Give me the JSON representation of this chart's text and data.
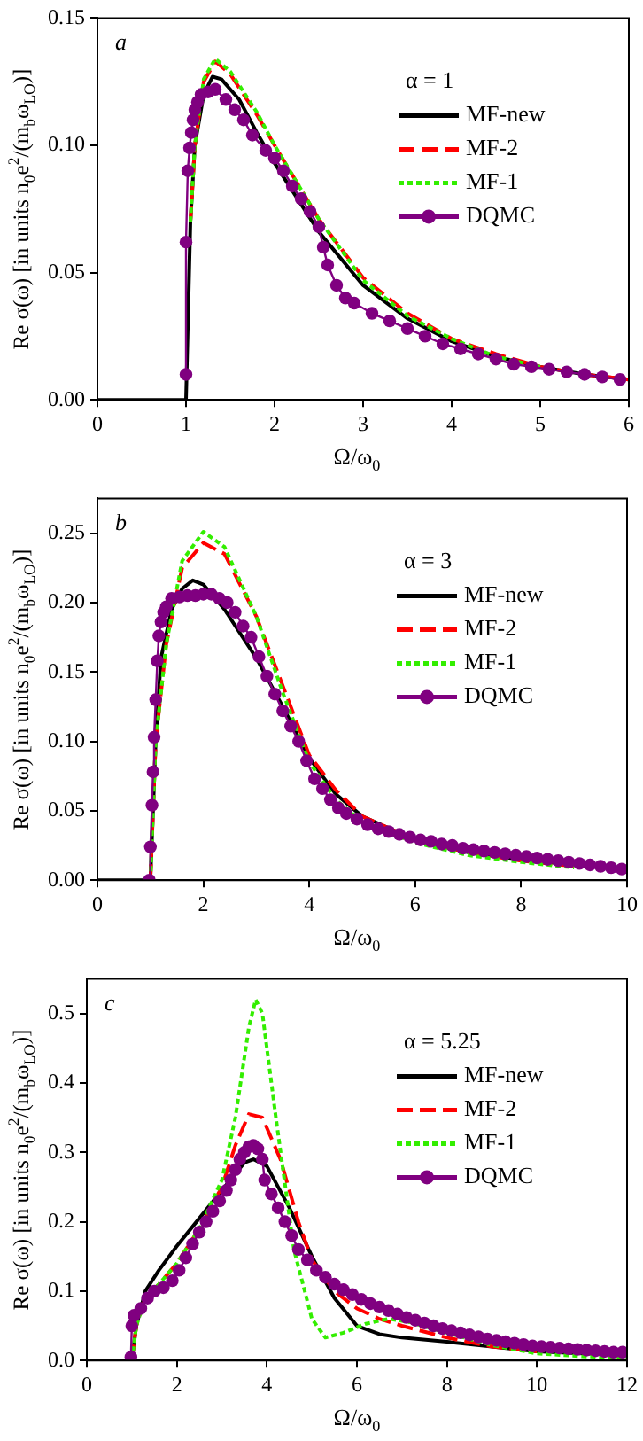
{
  "chart_data": [
    {
      "type": "line",
      "xlabel": "Ω/ω$_{0}$",
      "ylabel": "Re σ(ω) [in units n$_{0}$e$^{2}$/(m$_{b}$ω$_{LO}$)]",
      "legend_title": "α = 1",
      "legend": "top right",
      "annotations": [
        "a"
      ],
      "xlim": [
        0,
        6
      ],
      "xticks": [
        0,
        1,
        2,
        3,
        4,
        5,
        6
      ],
      "ylim": [
        0,
        0.15
      ],
      "yticks": [
        {
          "value": 0,
          "label": "0.00"
        },
        0.05,
        {
          "value": 0.1,
          "label": "0.10"
        },
        0.15
      ],
      "series": [
        {
          "name": "MF-new",
          "color": "#000000",
          "line_style": "solid",
          "marker": "none",
          "x": [
            0,
            1,
            1.05,
            1.1,
            1.2,
            1.3,
            1.4,
            1.6,
            1.8,
            2,
            2.5,
            3,
            3.5,
            4,
            4.5,
            5,
            5.5,
            6
          ],
          "values": [
            0,
            0,
            0.07,
            0.1,
            0.12,
            0.127,
            0.126,
            0.118,
            0.105,
            0.093,
            0.066,
            0.045,
            0.032,
            0.023,
            0.017,
            0.013,
            0.01,
            0.008
          ]
        },
        {
          "name": "MF-2",
          "color": "#ff0000",
          "line_style": "dashed",
          "marker": "none",
          "x": [
            1.05,
            1.1,
            1.2,
            1.33,
            1.5,
            1.8,
            2,
            2.5,
            3,
            3.5,
            4,
            4.5,
            5,
            5.5,
            6
          ],
          "values": [
            0.07,
            0.1,
            0.125,
            0.133,
            0.128,
            0.112,
            0.1,
            0.071,
            0.048,
            0.034,
            0.024,
            0.018,
            0.013,
            0.01,
            0.008
          ]
        },
        {
          "name": "MF-1",
          "color": "#33ee00",
          "line_style": "dotted",
          "marker": "none",
          "x": [
            1.05,
            1.1,
            1.2,
            1.33,
            1.5,
            1.8,
            2,
            2.5,
            3,
            3.5,
            4,
            4.5,
            5
          ],
          "values": [
            0.07,
            0.1,
            0.126,
            0.134,
            0.129,
            0.113,
            0.1,
            0.071,
            0.047,
            0.033,
            0.024,
            0.017,
            0.013
          ]
        },
        {
          "name": "DQMC",
          "color": "#800080",
          "line_style": "solid",
          "marker": "circle",
          "x": [
            1,
            1,
            1.02,
            1.04,
            1.06,
            1.08,
            1.1,
            1.13,
            1.17,
            1.25,
            1.33,
            1.45,
            1.55,
            1.65,
            1.75,
            1.9,
            2,
            2.1,
            2.2,
            2.3,
            2.4,
            2.5,
            2.55,
            2.6,
            2.7,
            2.8,
            2.9,
            3.1,
            3.3,
            3.5,
            3.7,
            3.9,
            4.1,
            4.3,
            4.5,
            4.7,
            4.9,
            5.1,
            5.3,
            5.5,
            5.7,
            5.9
          ],
          "values": [
            0.01,
            0.062,
            0.09,
            0.099,
            0.105,
            0.11,
            0.114,
            0.117,
            0.12,
            0.121,
            0.122,
            0.118,
            0.114,
            0.11,
            0.104,
            0.098,
            0.095,
            0.09,
            0.084,
            0.079,
            0.074,
            0.068,
            0.06,
            0.053,
            0.045,
            0.04,
            0.038,
            0.034,
            0.031,
            0.028,
            0.025,
            0.022,
            0.02,
            0.018,
            0.016,
            0.014,
            0.013,
            0.012,
            0.011,
            0.01,
            0.009,
            0.008
          ]
        }
      ]
    },
    {
      "type": "line",
      "xlabel": "Ω/ω$_{0}$",
      "ylabel": "Re σ(ω) [in units n$_{0}$e$^{2}$/(m$_{b}$ω$_{LO}$)]",
      "legend_title": "α = 3",
      "legend": "top right",
      "annotations": [
        "b"
      ],
      "xlim": [
        0,
        10
      ],
      "xticks": [
        0,
        2,
        4,
        6,
        8,
        10
      ],
      "ylim": [
        0,
        0.275
      ],
      "yticks": [
        {
          "value": 0,
          "label": "0.00"
        },
        0.05,
        {
          "value": 0.1,
          "label": "0.10"
        },
        0.15,
        {
          "value": 0.2,
          "label": "0.20"
        },
        0.25
      ],
      "series": [
        {
          "name": "MF-new",
          "color": "#000000",
          "line_style": "solid",
          "marker": "none",
          "x": [
            0,
            1,
            1.1,
            1.2,
            1.4,
            1.6,
            1.8,
            2,
            2.4,
            3,
            3.5,
            4,
            4.5,
            5,
            6,
            7,
            8,
            9,
            10
          ],
          "values": [
            0,
            0,
            0.1,
            0.16,
            0.195,
            0.21,
            0.216,
            0.213,
            0.195,
            0.16,
            0.125,
            0.088,
            0.062,
            0.046,
            0.029,
            0.02,
            0.015,
            0.011,
            0.008
          ]
        },
        {
          "name": "MF-2",
          "color": "#ff0000",
          "line_style": "dashed",
          "marker": "none",
          "x": [
            1,
            1.1,
            1.3,
            1.6,
            2,
            2.4,
            3,
            3.5,
            4,
            4.5,
            5,
            6,
            7,
            8,
            9
          ],
          "values": [
            0,
            0.1,
            0.17,
            0.225,
            0.243,
            0.235,
            0.19,
            0.14,
            0.09,
            0.065,
            0.046,
            0.029,
            0.02,
            0.014,
            0.01
          ]
        },
        {
          "name": "MF-1",
          "color": "#33ee00",
          "line_style": "dotted",
          "marker": "none",
          "x": [
            1,
            1.1,
            1.3,
            1.6,
            2,
            2.4,
            3,
            3.5,
            4,
            4.5,
            5,
            6,
            7,
            8,
            9
          ],
          "values": [
            0,
            0.1,
            0.17,
            0.23,
            0.251,
            0.24,
            0.19,
            0.135,
            0.085,
            0.058,
            0.042,
            0.027,
            0.018,
            0.013,
            0.009
          ]
        },
        {
          "name": "DQMC",
          "color": "#800080",
          "line_style": "solid",
          "marker": "circle",
          "x": [
            0.98,
            1,
            1.03,
            1.05,
            1.07,
            1.1,
            1.13,
            1.16,
            1.2,
            1.25,
            1.3,
            1.4,
            1.55,
            1.7,
            1.85,
            2,
            2.15,
            2.3,
            2.45,
            2.6,
            2.75,
            2.9,
            3.05,
            3.2,
            3.35,
            3.5,
            3.65,
            3.8,
            3.95,
            4.1,
            4.25,
            4.4,
            4.55,
            4.7,
            4.9,
            5.1,
            5.3,
            5.5,
            5.7,
            5.9,
            6.1,
            6.3,
            6.5,
            6.7,
            6.9,
            7.1,
            7.3,
            7.5,
            7.7,
            7.9,
            8.1,
            8.3,
            8.5,
            8.7,
            8.9,
            9.1,
            9.3,
            9.5,
            9.7,
            9.9
          ],
          "values": [
            0,
            0.024,
            0.054,
            0.078,
            0.103,
            0.13,
            0.158,
            0.176,
            0.186,
            0.193,
            0.197,
            0.203,
            0.204,
            0.205,
            0.205,
            0.206,
            0.206,
            0.203,
            0.2,
            0.193,
            0.183,
            0.175,
            0.161,
            0.147,
            0.134,
            0.122,
            0.111,
            0.1,
            0.086,
            0.073,
            0.066,
            0.058,
            0.052,
            0.048,
            0.044,
            0.04,
            0.037,
            0.035,
            0.033,
            0.031,
            0.029,
            0.028,
            0.026,
            0.025,
            0.023,
            0.022,
            0.021,
            0.02,
            0.019,
            0.018,
            0.017,
            0.016,
            0.015,
            0.014,
            0.013,
            0.012,
            0.011,
            0.01,
            0.009,
            0.008
          ]
        }
      ]
    },
    {
      "type": "line",
      "xlabel": "Ω/ω$_{0}$",
      "ylabel": "Re σ(ω) [in units n$_{0}$e$^{2}$/(m$_{b}$ω$_{LO}$)]",
      "legend_title": "α = 5.25",
      "legend": "top right",
      "annotations": [
        "c"
      ],
      "xlim": [
        0,
        12
      ],
      "xticks": [
        0,
        2,
        4,
        6,
        8,
        10,
        12
      ],
      "ylim": [
        0,
        0.55
      ],
      "yticks": [
        {
          "value": 0,
          "label": "0.0"
        },
        0.1,
        0.2,
        0.3,
        0.4,
        0.5
      ],
      "series": [
        {
          "name": "MF-new",
          "color": "#000000",
          "line_style": "solid",
          "marker": "none",
          "x": [
            0,
            1,
            1.1,
            1.3,
            1.6,
            2,
            2.5,
            3,
            3.5,
            3.7,
            4,
            4.5,
            5,
            5.5,
            6,
            6.5,
            7,
            8,
            9,
            10,
            11,
            12
          ],
          "values": [
            0,
            0,
            0.05,
            0.1,
            0.13,
            0.165,
            0.205,
            0.245,
            0.285,
            0.29,
            0.28,
            0.22,
            0.15,
            0.09,
            0.05,
            0.038,
            0.033,
            0.027,
            0.02,
            0.013,
            0.01,
            0.008
          ]
        },
        {
          "name": "MF-2",
          "color": "#ff0000",
          "line_style": "dashed",
          "marker": "none",
          "x": [
            1,
            1.1,
            1.3,
            1.6,
            2,
            2.5,
            3,
            3.3,
            3.6,
            3.9,
            4.3,
            4.7,
            5,
            5.5,
            6,
            6.5,
            7,
            8,
            9,
            10
          ],
          "values": [
            0,
            0.05,
            0.09,
            0.11,
            0.14,
            0.19,
            0.25,
            0.31,
            0.355,
            0.35,
            0.29,
            0.2,
            0.145,
            0.1,
            0.075,
            0.06,
            0.05,
            0.033,
            0.02,
            0.013
          ]
        },
        {
          "name": "MF-1",
          "color": "#33ee00",
          "line_style": "dotted",
          "marker": "none",
          "x": [
            1,
            1.1,
            1.3,
            1.6,
            2,
            2.5,
            3,
            3.3,
            3.6,
            3.75,
            3.9,
            4.2,
            4.6,
            5,
            5.3,
            5.7,
            6.2,
            6.7,
            7.2,
            8,
            9,
            10,
            11,
            12
          ],
          "values": [
            0,
            0.05,
            0.09,
            0.11,
            0.14,
            0.19,
            0.26,
            0.35,
            0.48,
            0.52,
            0.5,
            0.35,
            0.16,
            0.06,
            0.033,
            0.04,
            0.053,
            0.06,
            0.055,
            0.04,
            0.022,
            0.01,
            0.006,
            0.004
          ]
        },
        {
          "name": "DQMC",
          "color": "#800080",
          "line_style": "solid",
          "marker": "circle",
          "x": [
            0.98,
            1,
            1.05,
            1.2,
            1.35,
            1.5,
            1.7,
            1.9,
            2.05,
            2.2,
            2.35,
            2.5,
            2.65,
            2.8,
            2.95,
            3.1,
            3.2,
            3.3,
            3.4,
            3.5,
            3.6,
            3.7,
            3.8,
            3.9,
            3.95,
            4.1,
            4.25,
            4.4,
            4.55,
            4.7,
            4.9,
            5.1,
            5.3,
            5.5,
            5.7,
            5.9,
            6.1,
            6.3,
            6.5,
            6.7,
            6.9,
            7.1,
            7.3,
            7.5,
            7.7,
            7.9,
            8.1,
            8.3,
            8.5,
            8.7,
            8.9,
            9.1,
            9.3,
            9.5,
            9.7,
            9.9,
            10.1,
            10.3,
            10.5,
            10.7,
            10.9,
            11.1,
            11.3,
            11.5,
            11.7,
            11.9
          ],
          "values": [
            0.005,
            0.05,
            0.065,
            0.075,
            0.09,
            0.1,
            0.105,
            0.115,
            0.13,
            0.148,
            0.168,
            0.185,
            0.2,
            0.215,
            0.23,
            0.245,
            0.26,
            0.275,
            0.29,
            0.3,
            0.308,
            0.31,
            0.305,
            0.29,
            0.26,
            0.24,
            0.22,
            0.2,
            0.18,
            0.16,
            0.145,
            0.13,
            0.12,
            0.11,
            0.102,
            0.095,
            0.088,
            0.082,
            0.077,
            0.072,
            0.067,
            0.062,
            0.058,
            0.054,
            0.05,
            0.046,
            0.043,
            0.04,
            0.037,
            0.034,
            0.031,
            0.029,
            0.027,
            0.025,
            0.023,
            0.021,
            0.02,
            0.019,
            0.018,
            0.017,
            0.016,
            0.015,
            0.014,
            0.013,
            0.012,
            0.012
          ]
        }
      ]
    }
  ]
}
